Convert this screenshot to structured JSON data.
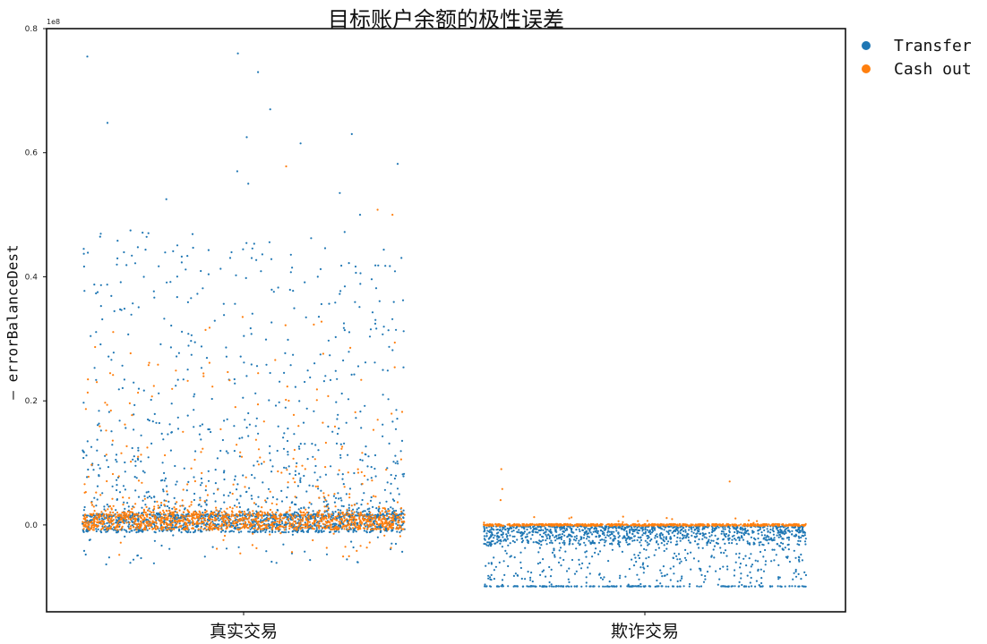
{
  "chart_data": {
    "type": "scatter",
    "title": "目标账户余额的极性误差",
    "xlabel": "",
    "ylabel": "– errorBalanceDest",
    "y_exponent_label": "1e8",
    "categories": [
      "真实交易",
      "欺诈交易"
    ],
    "y_ticks": [
      "0.0",
      "0.2",
      "0.4",
      "0.6",
      "0.8"
    ],
    "y_tick_values": [
      0.0,
      0.2,
      0.4,
      0.6,
      0.8
    ],
    "ylim": [
      -0.14,
      0.8
    ],
    "y_scale": 100000000,
    "grid": false,
    "legend_position": "outside-top-right",
    "series": [
      {
        "name": "Transfer",
        "color": "#1f77b4",
        "category_summary": [
          {
            "category": "真实交易",
            "typical_range": [
              -0.02,
              0.1
            ],
            "max": 0.76,
            "min": -0.08
          },
          {
            "category": "欺诈交易",
            "typical_range": [
              -0.1,
              0.0
            ],
            "max": 0.02,
            "min": -0.1
          }
        ],
        "outliers": [
          {
            "category": "真实交易",
            "y": 0.76
          },
          {
            "category": "真实交易",
            "y": 0.755
          },
          {
            "category": "真实交易",
            "y": 0.73
          },
          {
            "category": "真实交易",
            "y": 0.67
          },
          {
            "category": "真实交易",
            "y": 0.648
          },
          {
            "category": "真实交易",
            "y": 0.63
          },
          {
            "category": "真实交易",
            "y": 0.625
          },
          {
            "category": "真实交易",
            "y": 0.615
          },
          {
            "category": "真实交易",
            "y": 0.582
          },
          {
            "category": "真实交易",
            "y": 0.57
          },
          {
            "category": "真实交易",
            "y": 0.55
          },
          {
            "category": "真实交易",
            "y": 0.535
          },
          {
            "category": "真实交易",
            "y": 0.525
          },
          {
            "category": "真实交易",
            "y": 0.5
          }
        ]
      },
      {
        "name": "Cash out",
        "color": "#ff7f0e",
        "category_summary": [
          {
            "category": "真实交易",
            "typical_range": [
              -0.01,
              0.06
            ],
            "max": 0.58,
            "min": -0.1
          },
          {
            "category": "欺诈交易",
            "typical_range": [
              -0.005,
              0.005
            ],
            "max": 0.09,
            "min": -0.005
          }
        ],
        "outliers": [
          {
            "category": "真实交易",
            "y": 0.578
          },
          {
            "category": "真实交易",
            "y": 0.508
          },
          {
            "category": "真实交易",
            "y": 0.5
          },
          {
            "category": "欺诈交易",
            "y": 0.09
          },
          {
            "category": "欺诈交易",
            "y": 0.07
          },
          {
            "category": "欺诈交易",
            "y": 0.058
          },
          {
            "category": "欺诈交易",
            "y": 0.04
          }
        ]
      }
    ]
  }
}
